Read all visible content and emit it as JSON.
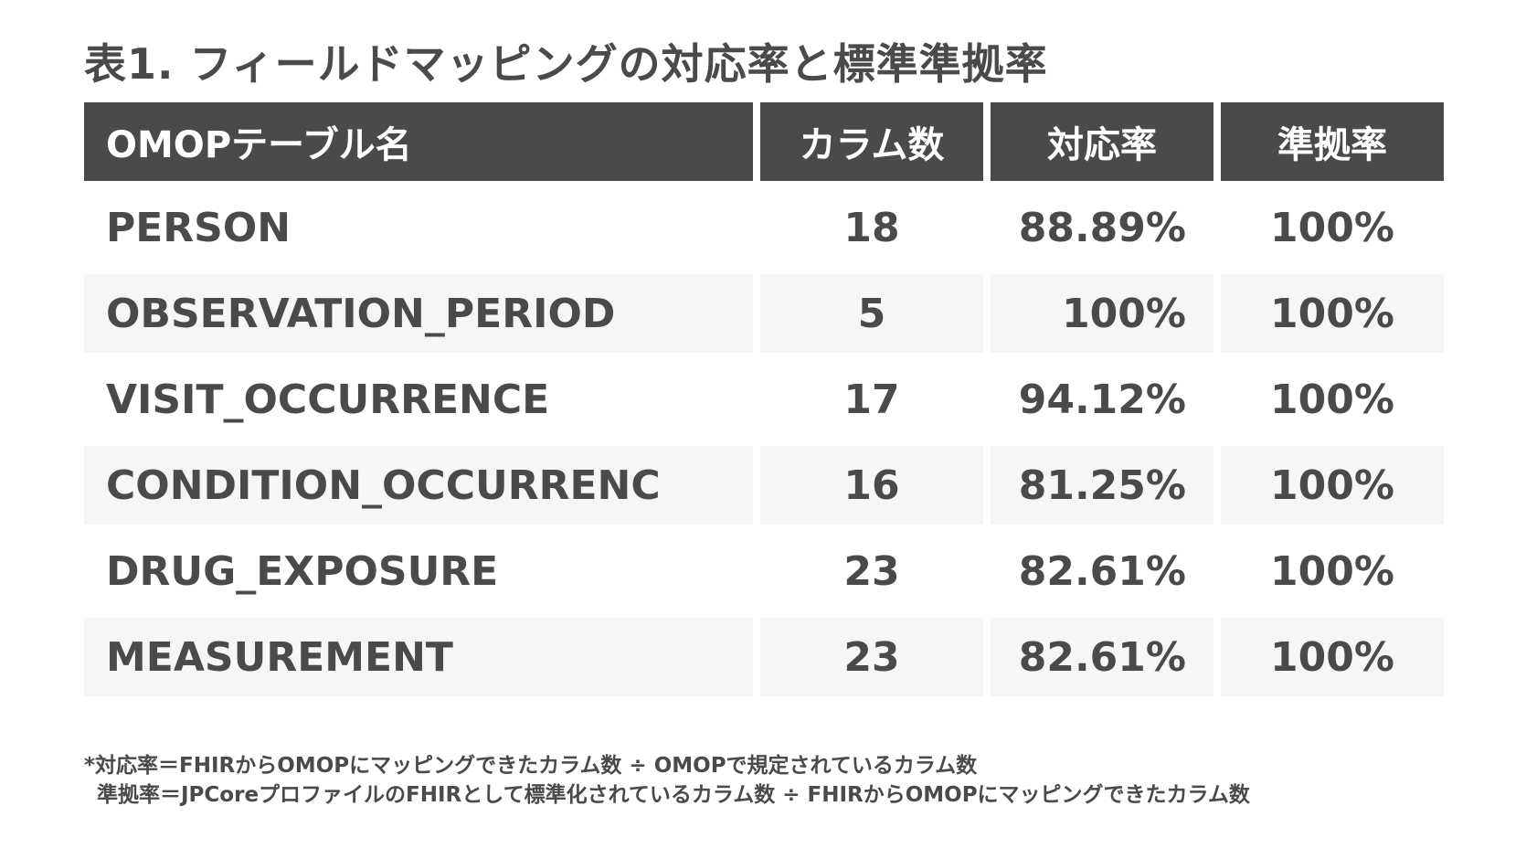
{
  "title": "表1. フィールドマッピングの対応率と標準準拠率",
  "table": {
    "headers": [
      "OMOPテーブル名",
      "カラム数",
      "対応率",
      "準拠率"
    ],
    "rows": [
      {
        "name": "PERSON",
        "columns": "18",
        "coverage": "88.89%",
        "compliance": "100%"
      },
      {
        "name": "OBSERVATION_PERIOD",
        "columns": "5",
        "coverage": "100%",
        "compliance": "100%"
      },
      {
        "name": "VISIT_OCCURRENCE",
        "columns": "17",
        "coverage": "94.12%",
        "compliance": "100%"
      },
      {
        "name": "CONDITION_OCCURRENC",
        "columns": "16",
        "coverage": "81.25%",
        "compliance": "100%"
      },
      {
        "name": "DRUG_EXPOSURE",
        "columns": "23",
        "coverage": "82.61%",
        "compliance": "100%"
      },
      {
        "name": "MEASUREMENT",
        "columns": "23",
        "coverage": "82.61%",
        "compliance": "100%"
      }
    ]
  },
  "footnote": {
    "line1": "*対応率＝FHIRからOMOPにマッピングできたカラム数 ÷ OMOPで規定されているカラム数",
    "line2": "準拠率＝JPCoreプロファイルのFHIRとして標準化されているカラム数 ÷ FHIRからOMOPにマッピングできたカラム数"
  }
}
